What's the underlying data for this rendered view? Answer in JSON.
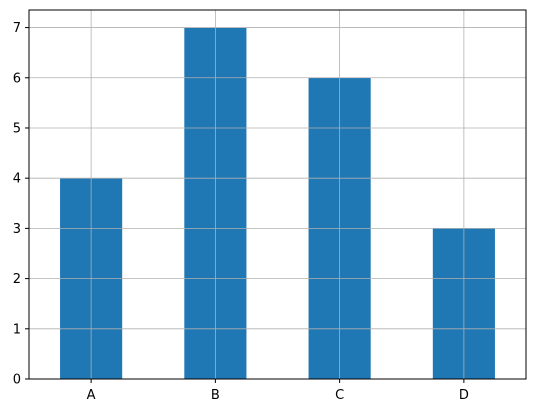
{
  "chart_data": {
    "type": "bar",
    "categories": [
      "A",
      "B",
      "C",
      "D"
    ],
    "values": [
      4,
      7,
      6,
      3
    ],
    "ylim": [
      0,
      7.35
    ],
    "yticks": [
      0,
      1,
      2,
      3,
      4,
      5,
      6,
      7
    ],
    "grid": true,
    "bar_color": "#1f77b4",
    "grid_color": "#b0b0b0",
    "axis_color": "#000000"
  }
}
